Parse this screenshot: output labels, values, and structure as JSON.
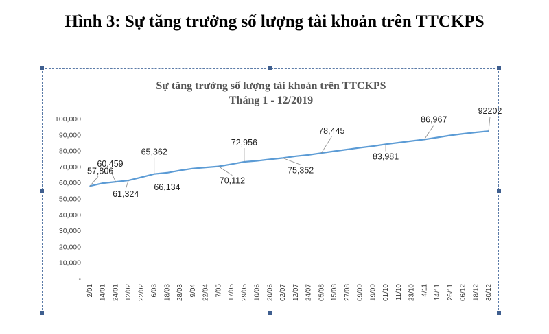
{
  "caption": "Hình 3: Sự tăng trưởng số lượng tài khoản trên TTCKPS",
  "chart_data": {
    "type": "line",
    "title": "Sự tăng trưởng số lượng tài khoản trên TTCKPS",
    "subtitle": "Tháng 1 - 12/2019",
    "xlabel": "",
    "ylabel": "",
    "ylim": [
      0,
      100000
    ],
    "grid": false,
    "legend": "none",
    "line_color": "#5b9bd5",
    "y_ticks": [
      "-",
      "10,000",
      "20,000",
      "30,000",
      "40,000",
      "50,000",
      "60,000",
      "70,000",
      "80,000",
      "90,000",
      "100,000"
    ],
    "categories": [
      "2/01",
      "14/01",
      "24/01",
      "12/02",
      "22/02",
      "6/03",
      "18/03",
      "28/03",
      "9/04",
      "22/04",
      "7/05",
      "17/05",
      "29/05",
      "10/06",
      "20/06",
      "02/07",
      "12/07",
      "24/07",
      "05/08",
      "15/08",
      "27/08",
      "09/09",
      "19/09",
      "01/10",
      "11/10",
      "23/10",
      "4/11",
      "14/11",
      "26/11",
      "06/12",
      "18/12",
      "30/12"
    ],
    "values": [
      57806,
      59600,
      60459,
      61324,
      63300,
      65362,
      66134,
      67600,
      68800,
      69500,
      70112,
      71500,
      72956,
      73600,
      74500,
      75352,
      76500,
      77300,
      78445,
      79600,
      80700,
      81800,
      82800,
      83981,
      85000,
      86000,
      86967,
      88200,
      89500,
      90500,
      91400,
      92202
    ],
    "data_labels": [
      {
        "index": 0,
        "text": "57,806"
      },
      {
        "index": 2,
        "text": "60,459"
      },
      {
        "index": 3,
        "text": "61,324"
      },
      {
        "index": 5,
        "text": "65,362"
      },
      {
        "index": 6,
        "text": "66,134"
      },
      {
        "index": 10,
        "text": "70,112"
      },
      {
        "index": 12,
        "text": "72,956"
      },
      {
        "index": 15,
        "text": "75,352"
      },
      {
        "index": 18,
        "text": "78,445"
      },
      {
        "index": 23,
        "text": "83,981"
      },
      {
        "index": 26,
        "text": "86,967"
      },
      {
        "index": 31,
        "text": "92202"
      }
    ]
  }
}
